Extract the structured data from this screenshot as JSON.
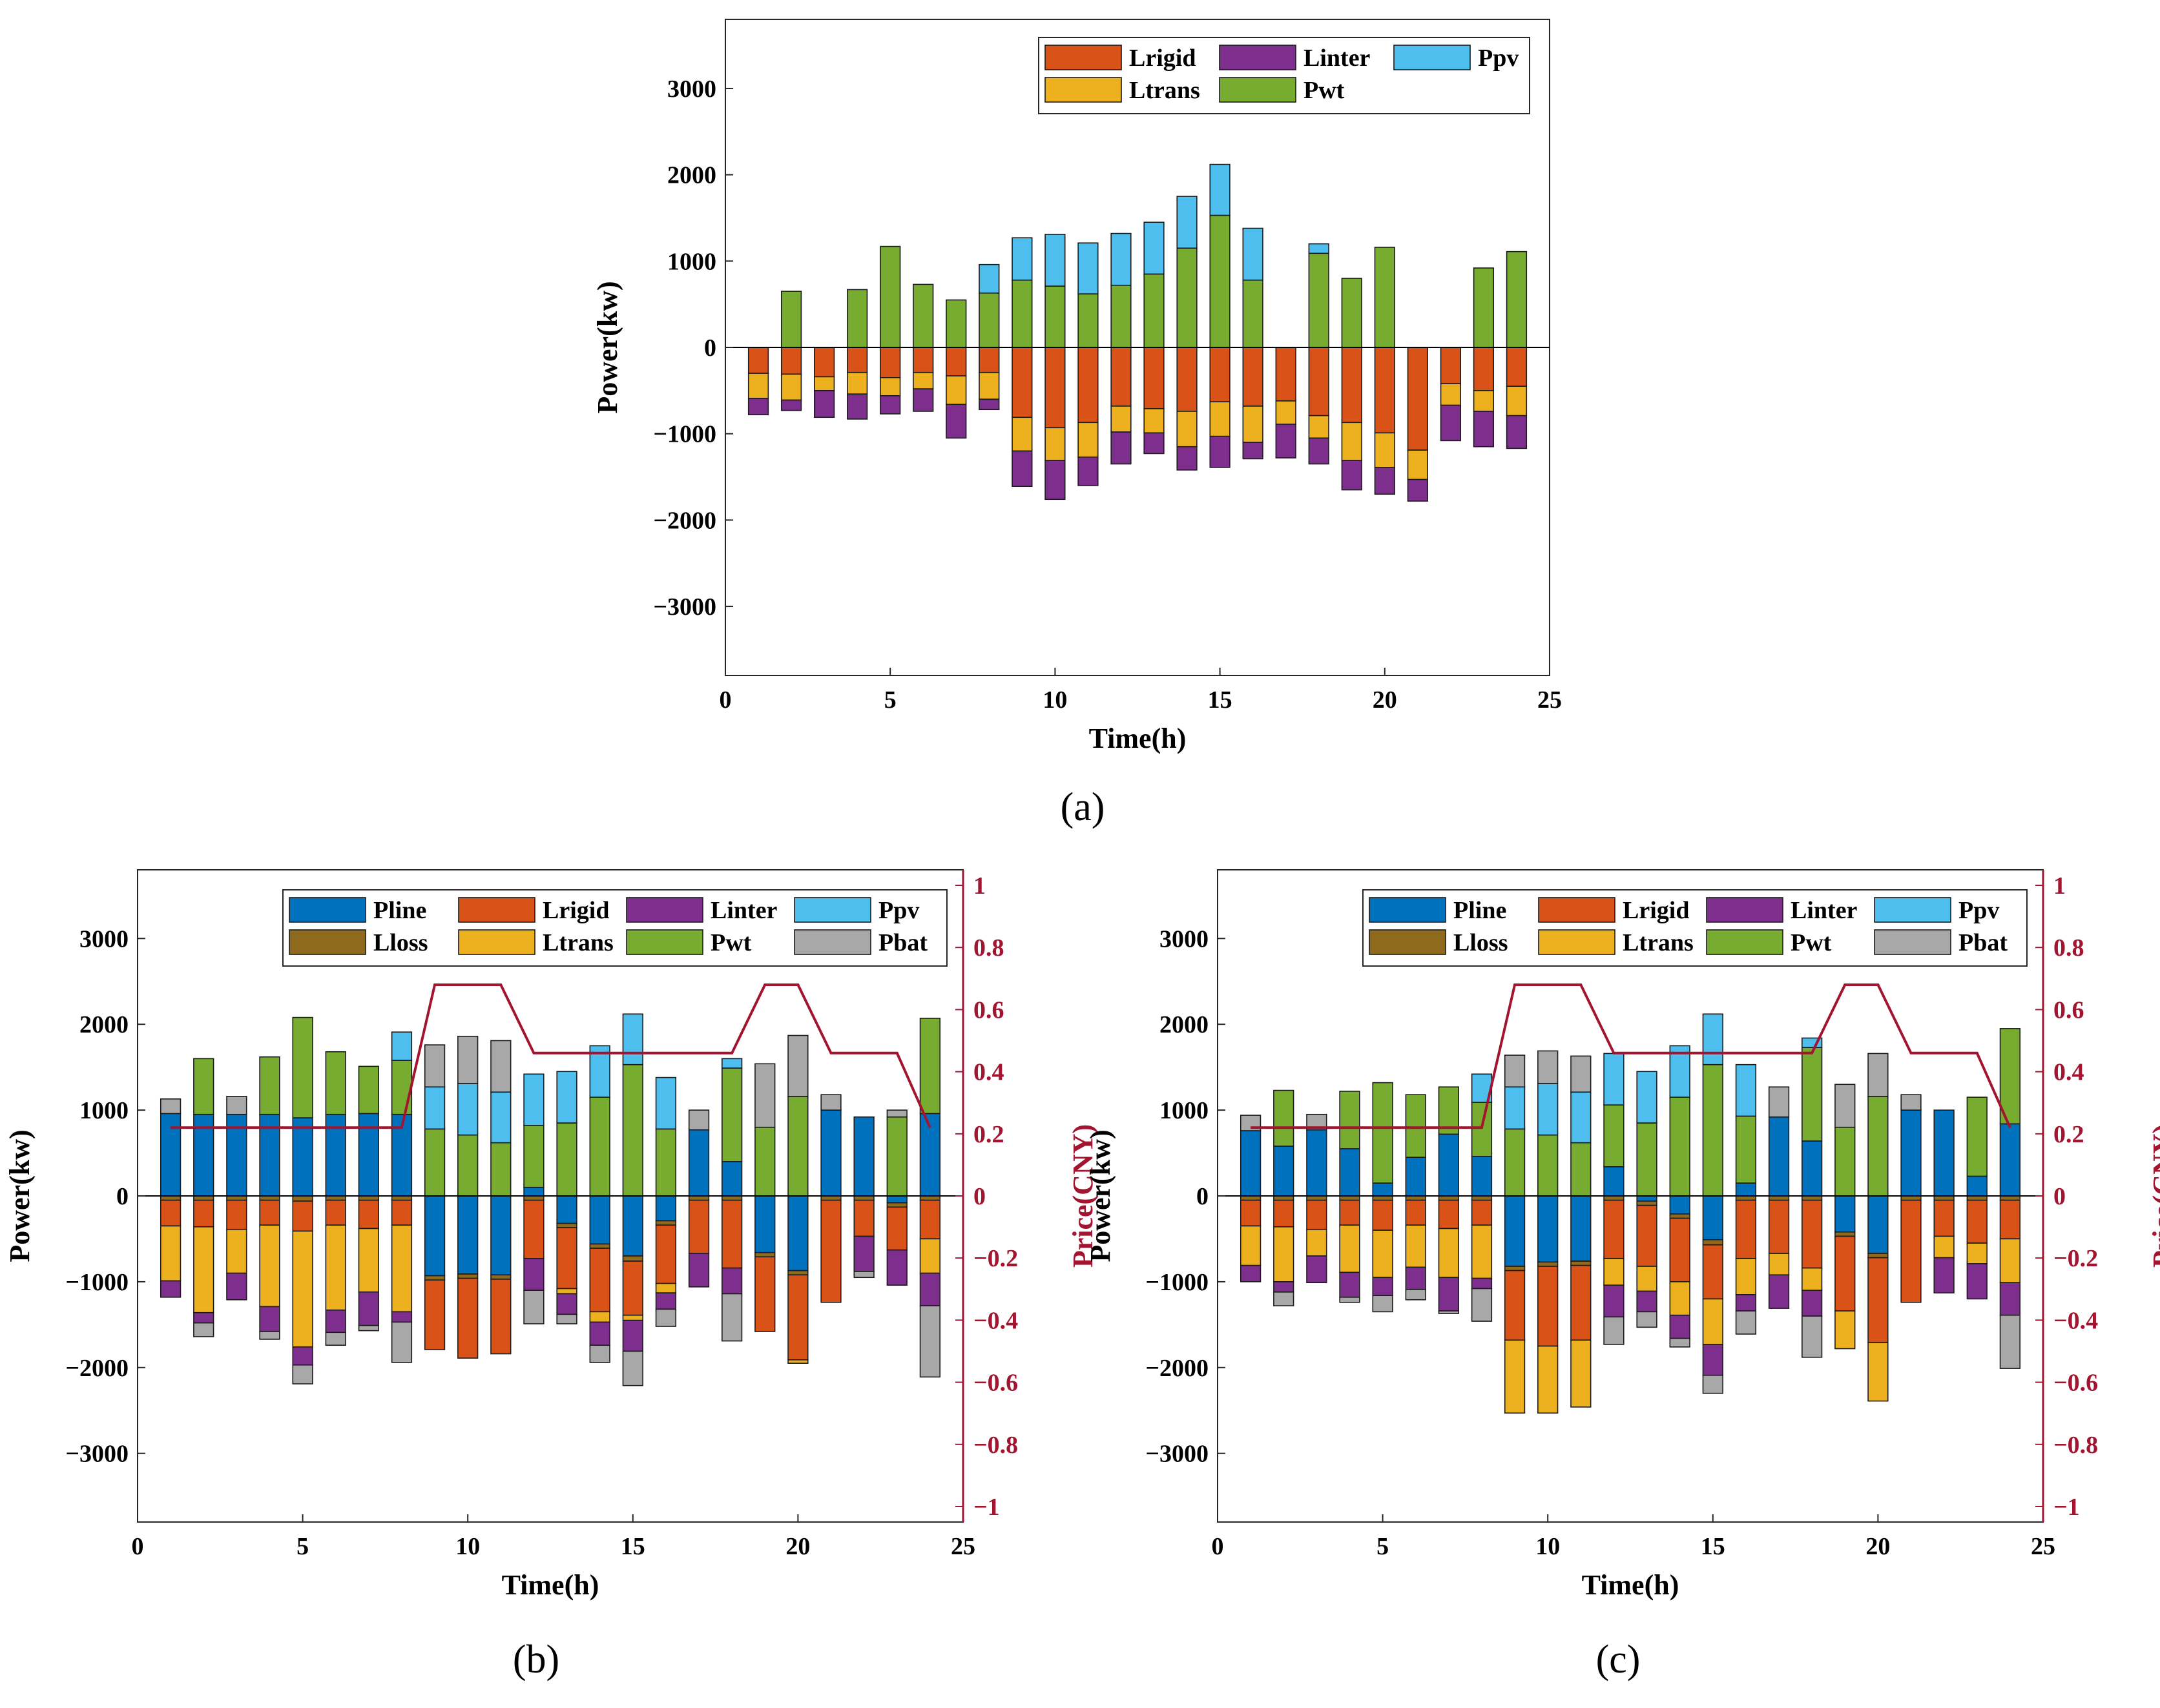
{
  "colors": {
    "Pline": "#0072BD",
    "Lrigid": "#D95319",
    "Linter": "#7E2F8E",
    "Ppv": "#4DBEEE",
    "Lloss": "#8F6A1C",
    "Ltrans": "#EDB120",
    "Pwt": "#77AC30",
    "Pbat": "#A8A8A8",
    "price": "#A2142F"
  },
  "chart_data": [
    {
      "type": "bar",
      "panel_label": "(a)",
      "stacked": true,
      "xlabel": "Time(h)",
      "ylabel": "Power(kw)",
      "xlim": [
        0,
        25
      ],
      "ylim": [
        -3800,
        3800
      ],
      "xticks": [
        0,
        5,
        10,
        15,
        20,
        25
      ],
      "yticks": [
        -3000,
        -2000,
        -1000,
        0,
        1000,
        2000,
        3000
      ],
      "legend_order": [
        "Lrigid",
        "Linter",
        "Ppv",
        "Ltrans",
        "Pwt"
      ],
      "x": [
        1,
        2,
        3,
        4,
        5,
        6,
        7,
        8,
        9,
        10,
        11,
        12,
        13,
        14,
        15,
        16,
        17,
        18,
        19,
        20,
        21,
        22,
        23,
        24
      ],
      "series": [
        {
          "name": "Pwt",
          "values": [
            0,
            650,
            0,
            670,
            1170,
            730,
            550,
            630,
            780,
            710,
            620,
            720,
            850,
            1150,
            1530,
            780,
            0,
            1090,
            800,
            1160,
            0,
            0,
            920,
            1110
          ]
        },
        {
          "name": "Ppv",
          "values": [
            0,
            0,
            0,
            0,
            0,
            0,
            0,
            330,
            490,
            600,
            590,
            600,
            600,
            600,
            590,
            600,
            0,
            110,
            0,
            0,
            0,
            0,
            0,
            0
          ]
        },
        {
          "name": "Lrigid",
          "values": [
            -300,
            -310,
            -340,
            -290,
            -350,
            -290,
            -330,
            -290,
            -810,
            -930,
            -870,
            -680,
            -710,
            -740,
            -630,
            -680,
            -620,
            -790,
            -870,
            -990,
            -1190,
            -420,
            -500,
            -450
          ]
        },
        {
          "name": "Ltrans",
          "values": [
            -290,
            -300,
            -160,
            -250,
            -210,
            -190,
            -330,
            -310,
            -390,
            -380,
            -400,
            -300,
            -280,
            -410,
            -400,
            -420,
            -270,
            -260,
            -440,
            -400,
            -340,
            -250,
            -240,
            -340
          ]
        },
        {
          "name": "Linter",
          "values": [
            -190,
            -120,
            -310,
            -290,
            -210,
            -260,
            -390,
            -120,
            -410,
            -450,
            -330,
            -370,
            -240,
            -270,
            -360,
            -190,
            -390,
            -300,
            -340,
            -310,
            -250,
            -410,
            -410,
            -380
          ]
        }
      ]
    },
    {
      "type": "bar",
      "panel_label": "(b)",
      "stacked": true,
      "xlabel": "Time(h)",
      "ylabel": "Power(kw)",
      "y2label": "Price(CNY)",
      "xlim": [
        0,
        25
      ],
      "ylim": [
        -3800,
        3800
      ],
      "y2lim": [
        -1.05,
        1.05
      ],
      "xticks": [
        0,
        5,
        10,
        15,
        20,
        25
      ],
      "yticks": [
        -3000,
        -2000,
        -1000,
        0,
        1000,
        2000,
        3000
      ],
      "y2ticks": [
        -1,
        -0.8,
        -0.6,
        -0.4,
        -0.2,
        0,
        0.2,
        0.4,
        0.6,
        0.8,
        1
      ],
      "legend_order": [
        "Pline",
        "Lrigid",
        "Linter",
        "Ppv",
        "Lloss",
        "Ltrans",
        "Pwt",
        "Pbat"
      ],
      "x": [
        1,
        2,
        3,
        4,
        5,
        6,
        7,
        8,
        9,
        10,
        11,
        12,
        13,
        14,
        15,
        16,
        17,
        18,
        19,
        20,
        21,
        22,
        23,
        24
      ],
      "series": [
        {
          "name": "Pline",
          "values": [
            960,
            950,
            950,
            950,
            910,
            950,
            960,
            950,
            -930,
            -910,
            -920,
            100,
            -320,
            -560,
            -700,
            -290,
            770,
            400,
            -660,
            -870,
            1000,
            920,
            -80,
            960
          ]
        },
        {
          "name": "Pwt",
          "values": [
            0,
            650,
            0,
            670,
            1170,
            730,
            550,
            630,
            780,
            710,
            620,
            720,
            850,
            1150,
            1530,
            780,
            0,
            1090,
            800,
            1160,
            0,
            0,
            920,
            1110
          ]
        },
        {
          "name": "Ppv",
          "values": [
            0,
            0,
            0,
            0,
            0,
            0,
            0,
            330,
            490,
            600,
            590,
            600,
            600,
            600,
            590,
            600,
            0,
            110,
            0,
            0,
            0,
            0,
            0,
            0
          ]
        },
        {
          "name": "Pbat",
          "values": [
            170,
            0,
            210,
            0,
            0,
            0,
            0,
            0,
            490,
            550,
            600,
            0,
            0,
            0,
            0,
            0,
            230,
            0,
            740,
            710,
            180,
            0,
            80,
            0
          ]
        },
        {
          "name": "Lloss",
          "values": [
            -50,
            -50,
            -50,
            -50,
            -60,
            -50,
            -50,
            -50,
            -50,
            -50,
            -50,
            -50,
            -50,
            -50,
            -60,
            -50,
            -50,
            -50,
            -50,
            -50,
            -50,
            -50,
            -50,
            -50
          ]
        },
        {
          "name": "Lrigid",
          "values": [
            -300,
            -310,
            -340,
            -290,
            -350,
            -290,
            -330,
            -290,
            -810,
            -930,
            -870,
            -680,
            -710,
            -740,
            -630,
            -680,
            -620,
            -790,
            -870,
            -990,
            -1190,
            -420,
            -500,
            -450
          ]
        },
        {
          "name": "Ltrans",
          "values": [
            -640,
            -1000,
            -510,
            -950,
            -1350,
            -990,
            -740,
            -1010,
            0,
            0,
            0,
            0,
            -60,
            -120,
            -60,
            -110,
            0,
            0,
            0,
            -40,
            0,
            0,
            0,
            -400
          ]
        },
        {
          "name": "Linter",
          "values": [
            -190,
            -120,
            -310,
            -290,
            -210,
            -260,
            -390,
            -120,
            0,
            0,
            0,
            -370,
            -240,
            -270,
            -360,
            -190,
            -390,
            -300,
            0,
            0,
            0,
            -410,
            -410,
            -380
          ]
        },
        {
          "name": "Pbat",
          "values": [
            0,
            -160,
            0,
            -90,
            -220,
            -150,
            -60,
            -470,
            0,
            0,
            0,
            -390,
            -110,
            -200,
            -400,
            -200,
            0,
            -550,
            0,
            0,
            0,
            -70,
            0,
            -830
          ]
        }
      ],
      "price": {
        "name": "Price",
        "values": [
          0.22,
          0.22,
          0.22,
          0.22,
          0.22,
          0.22,
          0.22,
          0.22,
          0.68,
          0.68,
          0.68,
          0.46,
          0.46,
          0.46,
          0.46,
          0.46,
          0.46,
          0.46,
          0.68,
          0.68,
          0.46,
          0.46,
          0.46,
          0.22
        ]
      }
    },
    {
      "type": "bar",
      "panel_label": "(c)",
      "stacked": true,
      "xlabel": "Time(h)",
      "ylabel": "Power(kw)",
      "y2label": "Price(CNY)",
      "xlim": [
        0,
        25
      ],
      "ylim": [
        -3800,
        3800
      ],
      "y2lim": [
        -1.05,
        1.05
      ],
      "xticks": [
        0,
        5,
        10,
        15,
        20,
        25
      ],
      "yticks": [
        -3000,
        -2000,
        -1000,
        0,
        1000,
        2000,
        3000
      ],
      "y2ticks": [
        -1,
        -0.8,
        -0.6,
        -0.4,
        -0.2,
        0,
        0.2,
        0.4,
        0.6,
        0.8,
        1
      ],
      "legend_order": [
        "Pline",
        "Lrigid",
        "Linter",
        "Ppv",
        "Lloss",
        "Ltrans",
        "Pwt",
        "Pbat"
      ],
      "x": [
        1,
        2,
        3,
        4,
        5,
        6,
        7,
        8,
        9,
        10,
        11,
        12,
        13,
        14,
        15,
        16,
        17,
        18,
        19,
        20,
        21,
        22,
        23,
        24
      ],
      "series": [
        {
          "name": "Pline",
          "values": [
            760,
            580,
            770,
            550,
            150,
            450,
            720,
            460,
            -820,
            -770,
            -760,
            340,
            -60,
            -210,
            -510,
            150,
            920,
            640,
            -420,
            -670,
            1000,
            1000,
            230,
            840
          ]
        },
        {
          "name": "Pwt",
          "values": [
            0,
            650,
            0,
            670,
            1170,
            730,
            550,
            630,
            780,
            710,
            620,
            720,
            850,
            1150,
            1530,
            780,
            0,
            1090,
            800,
            1160,
            0,
            0,
            920,
            1110
          ]
        },
        {
          "name": "Ppv",
          "values": [
            0,
            0,
            0,
            0,
            0,
            0,
            0,
            330,
            490,
            600,
            590,
            600,
            600,
            600,
            590,
            600,
            0,
            110,
            0,
            0,
            0,
            0,
            0,
            0
          ]
        },
        {
          "name": "Pbat",
          "values": [
            180,
            0,
            180,
            0,
            0,
            0,
            0,
            0,
            370,
            380,
            420,
            0,
            0,
            0,
            0,
            0,
            350,
            0,
            500,
            500,
            180,
            0,
            0,
            0
          ]
        },
        {
          "name": "Lloss",
          "values": [
            -50,
            -50,
            -50,
            -50,
            -50,
            -50,
            -50,
            -50,
            -50,
            -50,
            -50,
            -50,
            -50,
            -50,
            -60,
            -50,
            -50,
            -50,
            -50,
            -50,
            -50,
            -50,
            -50,
            -50
          ]
        },
        {
          "name": "Lrigid",
          "values": [
            -300,
            -310,
            -340,
            -290,
            -350,
            -290,
            -330,
            -290,
            -810,
            -930,
            -870,
            -680,
            -710,
            -740,
            -630,
            -680,
            -620,
            -790,
            -870,
            -990,
            -1190,
            -420,
            -500,
            -450
          ]
        },
        {
          "name": "Ltrans",
          "values": [
            -460,
            -640,
            -310,
            -550,
            -550,
            -490,
            -570,
            -620,
            -850,
            -780,
            -780,
            -310,
            -290,
            -390,
            -530,
            -420,
            -250,
            -260,
            -440,
            -680,
            0,
            -250,
            -240,
            -510
          ]
        },
        {
          "name": "Linter",
          "values": [
            -190,
            -120,
            -310,
            -290,
            -210,
            -260,
            -390,
            -120,
            0,
            0,
            0,
            -370,
            -240,
            -270,
            -360,
            -190,
            -390,
            -300,
            0,
            0,
            0,
            -410,
            -410,
            -380
          ]
        },
        {
          "name": "Pbat",
          "values": [
            0,
            -160,
            0,
            -60,
            -190,
            -120,
            -30,
            -380,
            0,
            0,
            0,
            -320,
            -180,
            -100,
            -210,
            -270,
            0,
            -480,
            0,
            0,
            0,
            0,
            0,
            -620
          ]
        }
      ],
      "price": {
        "name": "Price",
        "values": [
          0.22,
          0.22,
          0.22,
          0.22,
          0.22,
          0.22,
          0.22,
          0.22,
          0.68,
          0.68,
          0.68,
          0.46,
          0.46,
          0.46,
          0.46,
          0.46,
          0.46,
          0.46,
          0.68,
          0.68,
          0.46,
          0.46,
          0.46,
          0.22
        ]
      }
    }
  ]
}
